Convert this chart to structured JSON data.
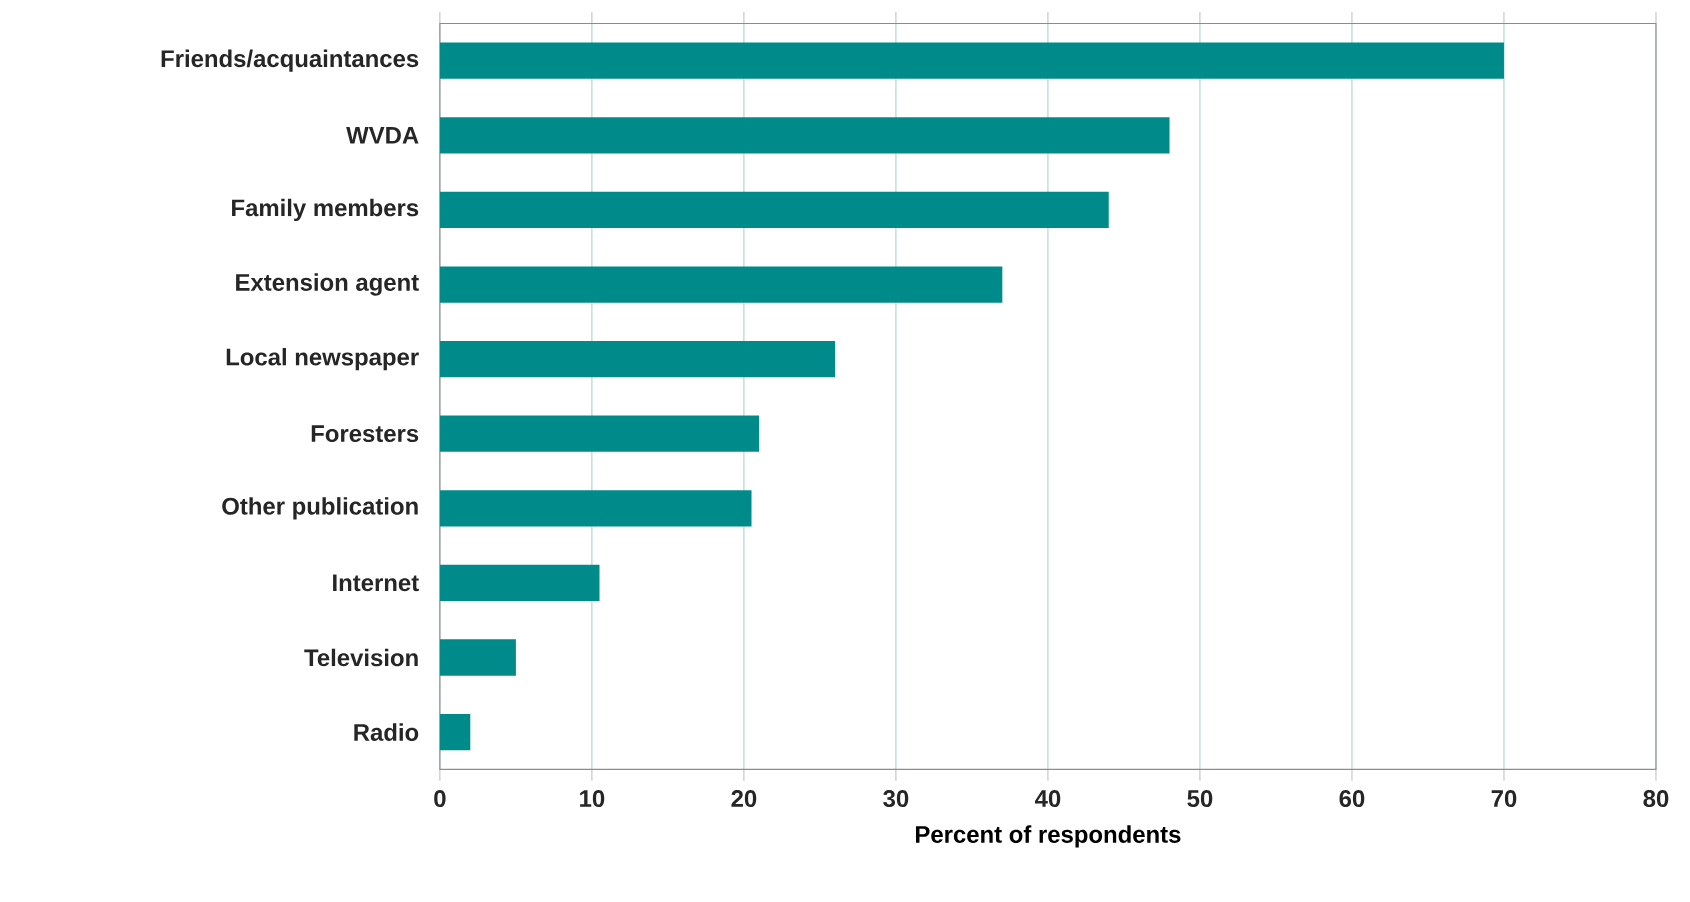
{
  "chart_data": {
    "type": "bar",
    "orientation": "horizontal",
    "xlabel": "Percent of respondents",
    "categories": [
      "Friends/acquaintances",
      "WVDA",
      "Family members",
      "Extension agent",
      "Local newspaper",
      "Foresters",
      "Other publication",
      "Internet",
      "Television",
      "Radio"
    ],
    "values": [
      70,
      48,
      44,
      37,
      26,
      21,
      20.5,
      10.5,
      5,
      2
    ],
    "color": "#008b8b",
    "xlim": [
      0,
      80
    ],
    "xticks": [
      0,
      10,
      20,
      30,
      40,
      50,
      60,
      70,
      80
    ],
    "grid": "x"
  }
}
